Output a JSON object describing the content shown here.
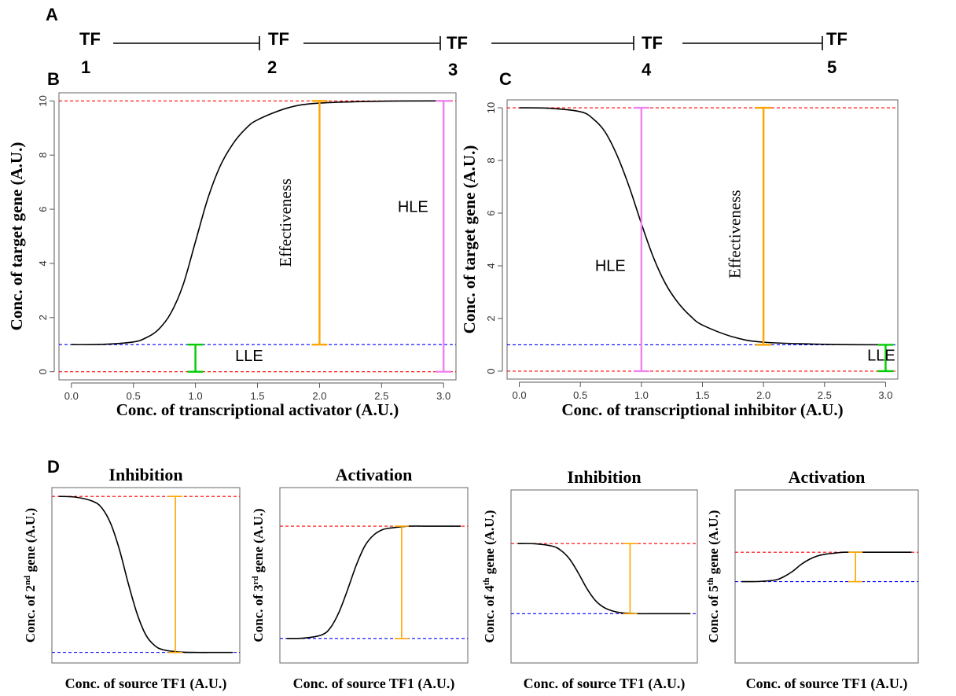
{
  "panel_labels": {
    "a": "A",
    "b": "B",
    "c": "C",
    "d": "D"
  },
  "cascade": {
    "nodes": [
      {
        "top": "TF",
        "bottom": "1"
      },
      {
        "top": "TF",
        "bottom": "2"
      },
      {
        "top": "TF",
        "bottom": "3"
      },
      {
        "top": "TF",
        "bottom": "4"
      },
      {
        "top": "TF",
        "bottom": "5"
      }
    ]
  },
  "colors": {
    "curve": "#000000",
    "upper_line": "#ff0000",
    "lower_line": "#0000ff",
    "baseline": "#ff0000",
    "effectiveness_bar": "#ffa500",
    "hle_bar": "#ee82ee",
    "lle_bar": "#00cc00"
  },
  "chart_data": [
    {
      "id": "B",
      "type": "line",
      "xlabel": "Conc. of transcriptional activator (A.U.)",
      "ylabel": "Conc. of target gene (A.U.)",
      "xlim": [
        -0.1,
        3.1
      ],
      "ylim": [
        -0.3,
        10.3
      ],
      "xticks": [
        "0.0",
        "0.5",
        "1.0",
        "1.5",
        "2.0",
        "2.5",
        "3.0"
      ],
      "yticks": [
        "0",
        "2",
        "4",
        "6",
        "8",
        "10"
      ],
      "curve": {
        "x": [
          0.0,
          0.25,
          0.5,
          0.6,
          0.7,
          0.8,
          0.9,
          1.0,
          1.1,
          1.2,
          1.3,
          1.4,
          1.5,
          1.75,
          2.0,
          2.5,
          3.0
        ],
        "y": [
          1.0,
          1.01,
          1.1,
          1.25,
          1.55,
          2.15,
          3.2,
          4.8,
          6.4,
          7.6,
          8.4,
          8.95,
          9.3,
          9.75,
          9.92,
          9.99,
          10.0
        ]
      },
      "hlines": [
        {
          "y": 10,
          "color": "upper_line"
        },
        {
          "y": 1,
          "color": "lower_line"
        },
        {
          "y": 0,
          "color": "baseline"
        }
      ],
      "bars": [
        {
          "x": 2.0,
          "y0": 1,
          "y1": 10,
          "color": "effectiveness_bar"
        },
        {
          "x": 3.0,
          "y0": 0,
          "y1": 10,
          "color": "hle_bar"
        },
        {
          "x": 1.0,
          "y0": 0,
          "y1": 1,
          "color": "lle_bar"
        }
      ],
      "annotations": [
        {
          "text": "Effectiveness",
          "x": 1.77,
          "y": 5.5,
          "rotate": true
        },
        {
          "text": "HLE",
          "x": 2.63,
          "y": 5.9,
          "rotate": false
        },
        {
          "text": "LLE",
          "x": 1.32,
          "y": 0.4,
          "rotate": false
        }
      ]
    },
    {
      "id": "C",
      "type": "line",
      "xlabel": "Conc. of transcriptional inhibitor (A.U.)",
      "ylabel": "Conc. of target gene (A.U.)",
      "xlim": [
        -0.1,
        3.1
      ],
      "ylim": [
        -0.3,
        10.3
      ],
      "xticks": [
        "0.0",
        "0.5",
        "1.0",
        "1.5",
        "2.0",
        "2.5",
        "3.0"
      ],
      "yticks": [
        "0",
        "2",
        "4",
        "6",
        "8",
        "10"
      ],
      "curve": {
        "x": [
          0.0,
          0.25,
          0.5,
          0.6,
          0.7,
          0.8,
          0.9,
          1.0,
          1.1,
          1.2,
          1.3,
          1.4,
          1.5,
          1.75,
          2.0,
          2.5,
          3.0
        ],
        "y": [
          10.0,
          9.98,
          9.85,
          9.6,
          9.1,
          8.2,
          7.0,
          5.6,
          4.3,
          3.3,
          2.6,
          2.1,
          1.75,
          1.3,
          1.1,
          1.02,
          1.0
        ]
      },
      "hlines": [
        {
          "y": 10,
          "color": "upper_line"
        },
        {
          "y": 1,
          "color": "lower_line"
        },
        {
          "y": 0,
          "color": "baseline"
        }
      ],
      "bars": [
        {
          "x": 1.0,
          "y0": 0,
          "y1": 10,
          "color": "hle_bar"
        },
        {
          "x": 2.0,
          "y0": 1,
          "y1": 10,
          "color": "effectiveness_bar"
        },
        {
          "x": 3.0,
          "y0": 0,
          "y1": 1,
          "color": "lle_bar"
        }
      ],
      "annotations": [
        {
          "text": "Effectiveness",
          "x": 1.81,
          "y": 5.2,
          "rotate": true
        },
        {
          "text": "HLE",
          "x": 0.62,
          "y": 3.8,
          "rotate": false
        },
        {
          "text": "LLE",
          "x": 2.85,
          "y": 0.4,
          "rotate": false
        }
      ]
    },
    {
      "id": "D1",
      "type": "line",
      "title": "Inhibition",
      "xlabel": "Conc. of source TF1 (A.U.)",
      "ylabel": {
        "pre": "Conc. of 2",
        "sup": "nd",
        "post": "  gene (A.U.)"
      },
      "ylim": [
        0,
        1
      ],
      "curve": {
        "x": [
          0.0,
          0.1,
          0.2,
          0.25,
          0.3,
          0.35,
          0.4,
          0.45,
          0.5,
          0.55,
          0.6,
          0.7,
          0.8,
          0.9,
          1.0
        ],
        "y": [
          0.95,
          0.945,
          0.92,
          0.88,
          0.79,
          0.64,
          0.45,
          0.28,
          0.16,
          0.1,
          0.075,
          0.062,
          0.06,
          0.06,
          0.06
        ]
      },
      "hlines": [
        {
          "y": 0.95,
          "color": "upper_line"
        },
        {
          "y": 0.06,
          "color": "lower_line"
        }
      ],
      "bars": [
        {
          "x": 0.67,
          "y0": 0.06,
          "y1": 0.95,
          "color": "effectiveness_bar"
        }
      ]
    },
    {
      "id": "D2",
      "type": "line",
      "title": "Activation",
      "xlabel": "Conc. of source TF1 (A.U.)",
      "ylabel": {
        "pre": "Conc. of 3",
        "sup": "rd",
        "post": "   gene (A.U.)"
      },
      "ylim": [
        0,
        1
      ],
      "curve": {
        "x": [
          0.0,
          0.1,
          0.2,
          0.25,
          0.3,
          0.35,
          0.4,
          0.45,
          0.5,
          0.55,
          0.6,
          0.7,
          0.8,
          0.9,
          1.0
        ],
        "y": [
          0.14,
          0.142,
          0.16,
          0.2,
          0.29,
          0.42,
          0.56,
          0.67,
          0.73,
          0.76,
          0.77,
          0.78,
          0.78,
          0.78,
          0.78
        ]
      },
      "hlines": [
        {
          "y": 0.78,
          "color": "upper_line"
        },
        {
          "y": 0.14,
          "color": "lower_line"
        }
      ],
      "bars": [
        {
          "x": 0.66,
          "y0": 0.14,
          "y1": 0.78,
          "color": "effectiveness_bar"
        }
      ]
    },
    {
      "id": "D3",
      "type": "line",
      "title": "Inhibition",
      "xlabel": "Conc. of source TF1 (A.U.)",
      "ylabel": {
        "pre": "Conc. of 4",
        "sup": "th",
        "post": "   gene (A.U.)"
      },
      "ylim": [
        0,
        1
      ],
      "curve": {
        "x": [
          0.0,
          0.1,
          0.2,
          0.25,
          0.3,
          0.35,
          0.4,
          0.45,
          0.5,
          0.55,
          0.6,
          0.7,
          0.8,
          0.9,
          1.0
        ],
        "y": [
          0.69,
          0.689,
          0.675,
          0.65,
          0.6,
          0.52,
          0.43,
          0.36,
          0.32,
          0.3,
          0.29,
          0.285,
          0.285,
          0.285,
          0.285
        ]
      },
      "hlines": [
        {
          "y": 0.69,
          "color": "upper_line"
        },
        {
          "y": 0.285,
          "color": "lower_line"
        }
      ],
      "bars": [
        {
          "x": 0.65,
          "y0": 0.285,
          "y1": 0.69,
          "color": "effectiveness_bar"
        }
      ]
    },
    {
      "id": "D4",
      "type": "line",
      "title": "Activation",
      "xlabel": "Conc. of source TF1 (A.U.)",
      "ylabel": {
        "pre": "Conc. of 5",
        "sup": "th",
        "post": "    gene (A.U.)"
      },
      "ylim": [
        0,
        1
      ],
      "curve": {
        "x": [
          0.0,
          0.1,
          0.2,
          0.25,
          0.3,
          0.35,
          0.4,
          0.45,
          0.5,
          0.55,
          0.6,
          0.7,
          0.8,
          0.9,
          1.0
        ],
        "y": [
          0.47,
          0.471,
          0.48,
          0.5,
          0.53,
          0.57,
          0.6,
          0.62,
          0.63,
          0.635,
          0.64,
          0.64,
          0.64,
          0.64,
          0.64
        ]
      },
      "hlines": [
        {
          "y": 0.64,
          "color": "upper_line"
        },
        {
          "y": 0.47,
          "color": "lower_line"
        }
      ],
      "bars": [
        {
          "x": 0.67,
          "y0": 0.47,
          "y1": 0.64,
          "color": "effectiveness_bar"
        }
      ]
    }
  ]
}
